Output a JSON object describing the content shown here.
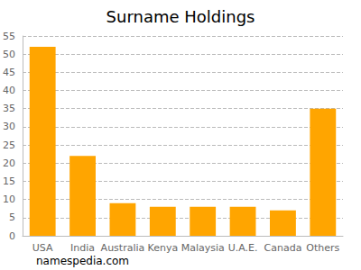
{
  "chart_data": {
    "type": "bar",
    "title": "Surname Holdings",
    "categories": [
      "USA",
      "India",
      "Australia",
      "Kenya",
      "Malaysia",
      "U.A.E.",
      "Canada",
      "Others"
    ],
    "values": [
      52,
      22,
      9,
      8,
      8,
      8,
      7,
      35
    ],
    "color": "#ffa500",
    "ylim": [
      0,
      55
    ],
    "yticks": [
      0,
      5,
      10,
      15,
      20,
      25,
      30,
      35,
      40,
      45,
      50,
      55
    ],
    "grid": true,
    "annotations": [
      "namespedia.com"
    ]
  }
}
